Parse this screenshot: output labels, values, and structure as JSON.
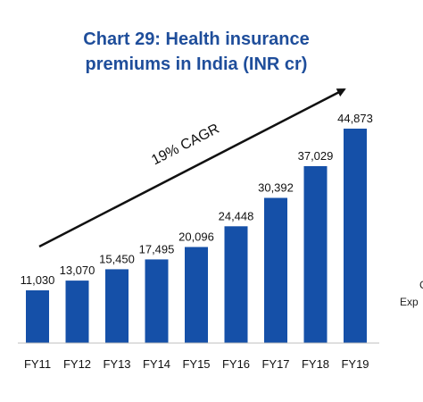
{
  "chart_data": {
    "type": "bar",
    "title_line1": "Chart 29: Health insurance",
    "title_line2": "premiums in India (INR cr)",
    "categories": [
      "FY11",
      "FY12",
      "FY13",
      "FY14",
      "FY15",
      "FY16",
      "FY17",
      "FY18",
      "FY19"
    ],
    "values": [
      11030,
      13070,
      15450,
      17495,
      20096,
      24448,
      30392,
      37029,
      44873
    ],
    "value_labels": [
      "11,030",
      "13,070",
      "15,450",
      "17,495",
      "20,096",
      "24,448",
      "30,392",
      "37,029",
      "44,873"
    ],
    "annotation": "19% CAGR",
    "bar_color": "#1550a8",
    "title_color": "#1f4e9b",
    "xlabel": "",
    "ylabel": "",
    "ylim": [
      0,
      46000
    ]
  },
  "side_text": {
    "line1": "C",
    "line2": "Exp"
  }
}
